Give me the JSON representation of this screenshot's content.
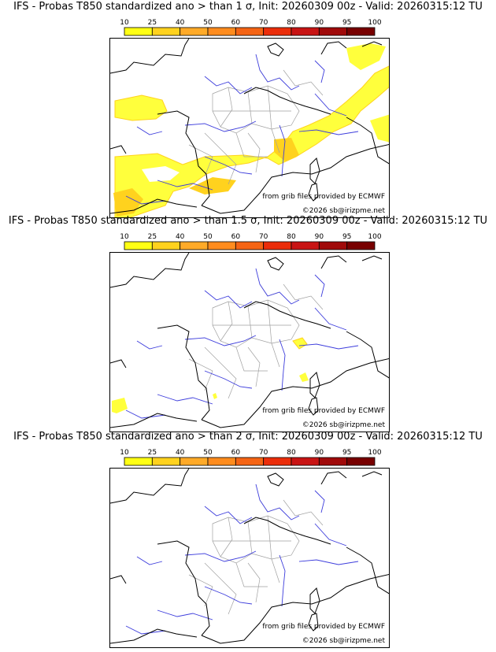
{
  "panels": [
    {
      "title": "IFS - Probas T850  standardized ano > than 1 σ, Init: 20260309 00z - Valid: 20260315:12 TU",
      "threshold": "1 σ"
    },
    {
      "title": "IFS - Probas T850  standardized ano > than 1.5 σ, Init: 20260309 00z - Valid: 20260315:12 TU",
      "threshold": "1.5 σ"
    },
    {
      "title": "IFS - Probas T850  standardized ano > than 2 σ, Init: 20260309 00z - Valid: 20260315:12 TU",
      "threshold": "2 σ"
    }
  ],
  "colorbar": {
    "ticks": [
      "10",
      "25",
      "40",
      "50",
      "60",
      "70",
      "80",
      "90",
      "95",
      "100"
    ],
    "colors": [
      "#ffff14",
      "#ffd21e",
      "#ffaa28",
      "#ff8c1e",
      "#f56414",
      "#eb2d0a",
      "#c81414",
      "#a00a0a",
      "#780000"
    ]
  },
  "credits": {
    "source": "from grib files provided by ECMWF",
    "copyright": "©2026 sb@irizpme.net"
  },
  "colors": {
    "fill_light": "#ffff3c",
    "fill_dark": "#ffd21e",
    "coast": "#000000",
    "rivers": "#3c3cdc",
    "borders": "#a0a0a0"
  }
}
